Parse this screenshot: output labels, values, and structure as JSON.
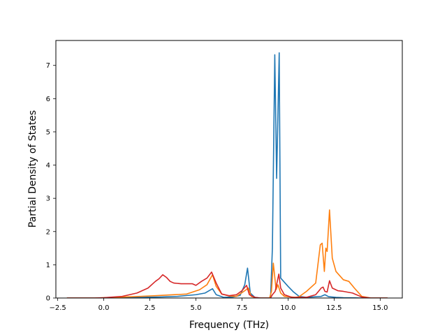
{
  "chart_data": {
    "type": "line",
    "title": "",
    "xlabel": "Frequency (THz)",
    "ylabel": "Partial Density of States",
    "xlim": [
      -2.6,
      16.2
    ],
    "ylim": [
      0,
      7.75
    ],
    "xticks": [
      -2.5,
      0.0,
      2.5,
      5.0,
      7.5,
      10.0,
      12.5,
      15.0
    ],
    "xtick_labels": [
      "−2.5",
      "0.0",
      "2.5",
      "5.0",
      "7.5",
      "10.0",
      "12.5",
      "15.0"
    ],
    "yticks": [
      0,
      1,
      2,
      3,
      4,
      5,
      6,
      7
    ],
    "ytick_labels": [
      "0",
      "1",
      "2",
      "3",
      "4",
      "5",
      "6",
      "7"
    ],
    "grid": false,
    "legend": "none",
    "series": [
      {
        "color": "#1f77b4",
        "points": [
          [
            -2.0,
            0
          ],
          [
            -0.5,
            0
          ],
          [
            0.0,
            0.0
          ],
          [
            1.0,
            0.01
          ],
          [
            2.0,
            0.02
          ],
          [
            3.0,
            0.03
          ],
          [
            4.0,
            0.05
          ],
          [
            5.0,
            0.1
          ],
          [
            5.5,
            0.15
          ],
          [
            5.9,
            0.28
          ],
          [
            6.1,
            0.1
          ],
          [
            6.5,
            0.02
          ],
          [
            7.0,
            0.03
          ],
          [
            7.4,
            0.08
          ],
          [
            7.65,
            0.4
          ],
          [
            7.8,
            0.9
          ],
          [
            7.95,
            0.15
          ],
          [
            8.2,
            0.02
          ],
          [
            8.5,
            0
          ],
          [
            9.05,
            0
          ],
          [
            9.15,
            1.5
          ],
          [
            9.28,
            7.32
          ],
          [
            9.38,
            3.6
          ],
          [
            9.52,
            7.38
          ],
          [
            9.6,
            0.6
          ],
          [
            10.0,
            0.35
          ],
          [
            10.3,
            0.18
          ],
          [
            10.6,
            0.05
          ],
          [
            11.0,
            0.02
          ],
          [
            11.8,
            0.05
          ],
          [
            12.0,
            0.1
          ],
          [
            12.2,
            0.04
          ],
          [
            12.6,
            0.02
          ],
          [
            13.0,
            0.01
          ],
          [
            14.0,
            0
          ],
          [
            15.4,
            0
          ]
        ]
      },
      {
        "color": "#ff7f0e",
        "points": [
          [
            -2.0,
            0
          ],
          [
            -0.5,
            0
          ],
          [
            0.0,
            0.01
          ],
          [
            1.0,
            0.03
          ],
          [
            2.0,
            0.05
          ],
          [
            2.8,
            0.07
          ],
          [
            3.5,
            0.09
          ],
          [
            4.5,
            0.12
          ],
          [
            5.2,
            0.25
          ],
          [
            5.6,
            0.4
          ],
          [
            5.9,
            0.7
          ],
          [
            6.1,
            0.35
          ],
          [
            6.4,
            0.12
          ],
          [
            6.8,
            0.06
          ],
          [
            7.2,
            0.05
          ],
          [
            7.6,
            0.2
          ],
          [
            7.85,
            0.3
          ],
          [
            8.0,
            0.05
          ],
          [
            8.3,
            0
          ],
          [
            9.0,
            0
          ],
          [
            9.1,
            0.2
          ],
          [
            9.2,
            1.05
          ],
          [
            9.35,
            0.25
          ],
          [
            9.45,
            0.4
          ],
          [
            9.6,
            0.15
          ],
          [
            9.8,
            0.05
          ],
          [
            10.4,
            0.02
          ],
          [
            10.6,
            0.04
          ],
          [
            11.0,
            0.2
          ],
          [
            11.5,
            0.45
          ],
          [
            11.75,
            1.6
          ],
          [
            11.85,
            1.65
          ],
          [
            11.97,
            0.8
          ],
          [
            12.05,
            1.5
          ],
          [
            12.12,
            1.4
          ],
          [
            12.25,
            2.65
          ],
          [
            12.4,
            1.2
          ],
          [
            12.6,
            0.8
          ],
          [
            13.0,
            0.55
          ],
          [
            13.3,
            0.5
          ],
          [
            13.6,
            0.3
          ],
          [
            14.0,
            0.05
          ],
          [
            14.5,
            0
          ],
          [
            15.4,
            0
          ]
        ]
      },
      {
        "color": "#d62728",
        "points": [
          [
            -2.0,
            0
          ],
          [
            -0.5,
            0
          ],
          [
            0.0,
            0.01
          ],
          [
            1.0,
            0.05
          ],
          [
            1.8,
            0.15
          ],
          [
            2.4,
            0.3
          ],
          [
            2.8,
            0.5
          ],
          [
            3.0,
            0.58
          ],
          [
            3.2,
            0.7
          ],
          [
            3.4,
            0.62
          ],
          [
            3.6,
            0.5
          ],
          [
            3.8,
            0.45
          ],
          [
            4.2,
            0.43
          ],
          [
            4.8,
            0.43
          ],
          [
            5.0,
            0.38
          ],
          [
            5.3,
            0.5
          ],
          [
            5.6,
            0.6
          ],
          [
            5.85,
            0.78
          ],
          [
            6.1,
            0.45
          ],
          [
            6.4,
            0.12
          ],
          [
            6.8,
            0.07
          ],
          [
            7.2,
            0.1
          ],
          [
            7.5,
            0.22
          ],
          [
            7.75,
            0.38
          ],
          [
            7.9,
            0.1
          ],
          [
            8.2,
            0.02
          ],
          [
            8.5,
            0
          ],
          [
            9.05,
            0
          ],
          [
            9.15,
            0.1
          ],
          [
            9.3,
            0.2
          ],
          [
            9.5,
            0.72
          ],
          [
            9.6,
            0.3
          ],
          [
            9.8,
            0.1
          ],
          [
            10.2,
            0.02
          ],
          [
            11.0,
            0.02
          ],
          [
            11.5,
            0.1
          ],
          [
            11.8,
            0.3
          ],
          [
            11.9,
            0.33
          ],
          [
            12.0,
            0.2
          ],
          [
            12.12,
            0.18
          ],
          [
            12.25,
            0.52
          ],
          [
            12.4,
            0.3
          ],
          [
            12.7,
            0.22
          ],
          [
            13.0,
            0.2
          ],
          [
            13.5,
            0.15
          ],
          [
            14.0,
            0.03
          ],
          [
            14.5,
            0
          ],
          [
            15.4,
            0
          ]
        ]
      }
    ]
  }
}
